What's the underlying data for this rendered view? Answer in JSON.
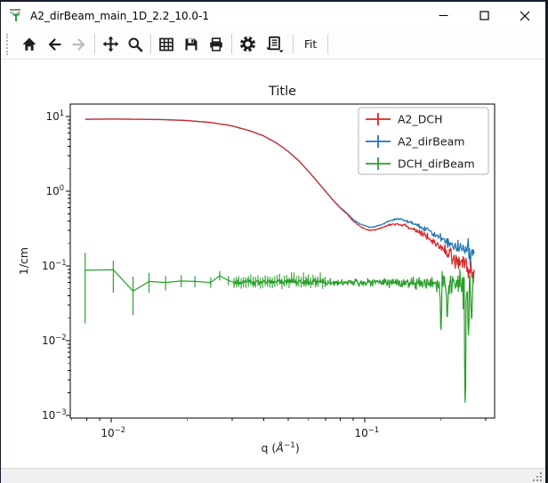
{
  "window": {
    "title": "A2_dirBeam_main_1D_2.2_10.0-1",
    "controls": [
      {
        "name": "minimize"
      },
      {
        "name": "maximize"
      },
      {
        "name": "close"
      }
    ]
  },
  "toolbar": {
    "icons": [
      "home",
      "back",
      "forward",
      "pan",
      "zoom-to-rect",
      "configure-subplots",
      "save",
      "print",
      "settings",
      "plot-options"
    ],
    "fit_label": "Fit"
  },
  "statusbar": {
    "text": ""
  },
  "chart_data": {
    "type": "line",
    "log_x": true,
    "log_y": true,
    "grid": false,
    "title": "Title",
    "ylabel": "1/cm",
    "xlabel_parts": {
      "pre": "q (",
      "unit": "Å",
      "sup": "−1",
      "post": ")"
    },
    "xlim": [
      0.0069,
      0.3253
    ],
    "ylim": [
      0.00092,
      14.7
    ],
    "x_tick_exponents": [
      -2,
      -1
    ],
    "y_tick_exponents": [
      1,
      0,
      -1,
      -2,
      -3
    ],
    "legend_loc": "upper right",
    "series": [
      {
        "name": "A2_DCH",
        "color": "#d62728",
        "z": 1,
        "seed": 7,
        "range": [
          0.0079,
          0.27
        ],
        "n": 600,
        "anchors": [
          [
            0.0079,
            9.2
          ],
          [
            0.01,
            9.25
          ],
          [
            0.013,
            9.2
          ],
          [
            0.016,
            9.1
          ],
          [
            0.02,
            8.85
          ],
          [
            0.025,
            8.3
          ],
          [
            0.03,
            7.5
          ],
          [
            0.035,
            6.5
          ],
          [
            0.04,
            5.5
          ],
          [
            0.045,
            4.4
          ],
          [
            0.05,
            3.4
          ],
          [
            0.055,
            2.55
          ],
          [
            0.06,
            1.85
          ],
          [
            0.065,
            1.35
          ],
          [
            0.07,
            1.0
          ],
          [
            0.075,
            0.76
          ],
          [
            0.08,
            0.6
          ],
          [
            0.085,
            0.5
          ],
          [
            0.09,
            0.4
          ],
          [
            0.095,
            0.345
          ],
          [
            0.1,
            0.315
          ],
          [
            0.105,
            0.3
          ],
          [
            0.11,
            0.305
          ],
          [
            0.115,
            0.32
          ],
          [
            0.12,
            0.34
          ],
          [
            0.125,
            0.355
          ],
          [
            0.13,
            0.365
          ],
          [
            0.135,
            0.365
          ],
          [
            0.14,
            0.357
          ],
          [
            0.15,
            0.33
          ],
          [
            0.16,
            0.295
          ],
          [
            0.17,
            0.262
          ],
          [
            0.18,
            0.23
          ],
          [
            0.19,
            0.2
          ],
          [
            0.2,
            0.175
          ],
          [
            0.21,
            0.155
          ],
          [
            0.22,
            0.138
          ],
          [
            0.23,
            0.122
          ],
          [
            0.24,
            0.108
          ],
          [
            0.25,
            0.098
          ],
          [
            0.26,
            0.09
          ],
          [
            0.27,
            0.086
          ]
        ],
        "noise": [
          [
            0.008,
            0.002
          ],
          [
            0.08,
            0.004
          ],
          [
            0.12,
            0.012
          ],
          [
            0.16,
            0.035
          ],
          [
            0.2,
            0.08
          ],
          [
            0.24,
            0.16
          ],
          [
            0.27,
            0.22
          ]
        ]
      },
      {
        "name": "A2_dirBeam",
        "color": "#1f77b4",
        "z": 0,
        "seed": 13,
        "range": [
          0.0079,
          0.27
        ],
        "n": 600,
        "anchors": [
          [
            0.0079,
            9.2
          ],
          [
            0.01,
            9.25
          ],
          [
            0.013,
            9.2
          ],
          [
            0.016,
            9.1
          ],
          [
            0.02,
            8.85
          ],
          [
            0.025,
            8.3
          ],
          [
            0.03,
            7.5
          ],
          [
            0.035,
            6.5
          ],
          [
            0.04,
            5.5
          ],
          [
            0.045,
            4.4
          ],
          [
            0.05,
            3.4
          ],
          [
            0.055,
            2.55
          ],
          [
            0.06,
            1.85
          ],
          [
            0.065,
            1.35
          ],
          [
            0.07,
            1.0
          ],
          [
            0.075,
            0.76
          ],
          [
            0.08,
            0.61
          ],
          [
            0.085,
            0.51
          ],
          [
            0.09,
            0.42
          ],
          [
            0.095,
            0.37
          ],
          [
            0.1,
            0.345
          ],
          [
            0.105,
            0.33
          ],
          [
            0.11,
            0.335
          ],
          [
            0.115,
            0.35
          ],
          [
            0.12,
            0.375
          ],
          [
            0.125,
            0.4
          ],
          [
            0.13,
            0.415
          ],
          [
            0.135,
            0.42
          ],
          [
            0.14,
            0.415
          ],
          [
            0.15,
            0.39
          ],
          [
            0.16,
            0.355
          ],
          [
            0.17,
            0.32
          ],
          [
            0.18,
            0.29
          ],
          [
            0.19,
            0.262
          ],
          [
            0.2,
            0.238
          ],
          [
            0.21,
            0.218
          ],
          [
            0.22,
            0.202
          ],
          [
            0.23,
            0.188
          ],
          [
            0.24,
            0.175
          ],
          [
            0.25,
            0.165
          ],
          [
            0.26,
            0.155
          ],
          [
            0.27,
            0.15
          ]
        ],
        "noise": [
          [
            0.008,
            0.002
          ],
          [
            0.08,
            0.004
          ],
          [
            0.12,
            0.01
          ],
          [
            0.16,
            0.028
          ],
          [
            0.2,
            0.06
          ],
          [
            0.24,
            0.11
          ],
          [
            0.27,
            0.16
          ]
        ]
      },
      {
        "name": "DCH_dirBeam",
        "color": "#2ca02c",
        "z": 2,
        "seed": 21,
        "range": [
          0.0305,
          0.268
        ],
        "n": 500,
        "sparse": [
          [
            0.0079,
            0.088,
            0.017,
            0.15
          ],
          [
            0.0102,
            0.089,
            0.044,
            0.118
          ],
          [
            0.0122,
            0.046,
            0.022,
            0.072
          ],
          [
            0.0141,
            0.062,
            0.044,
            0.081
          ],
          [
            0.0164,
            0.06,
            0.047,
            0.073
          ],
          [
            0.0189,
            0.063,
            0.052,
            0.075
          ],
          [
            0.0214,
            0.062,
            0.052,
            0.073
          ],
          [
            0.0247,
            0.06,
            0.051,
            0.07
          ],
          [
            0.0268,
            0.074,
            0.064,
            0.085
          ],
          [
            0.029,
            0.064,
            0.055,
            0.073
          ],
          [
            0.0305,
            0.06,
            0.051,
            0.069
          ]
        ],
        "anchors": [
          [
            0.0305,
            0.06
          ],
          [
            0.05,
            0.062
          ],
          [
            0.08,
            0.06
          ],
          [
            0.12,
            0.061
          ],
          [
            0.16,
            0.058
          ],
          [
            0.2,
            0.057
          ],
          [
            0.24,
            0.054
          ],
          [
            0.268,
            0.05
          ]
        ],
        "noise": [
          [
            0.0305,
            0.04
          ],
          [
            0.06,
            0.05
          ],
          [
            0.1,
            0.06
          ],
          [
            0.14,
            0.08
          ],
          [
            0.18,
            0.12
          ],
          [
            0.22,
            0.22
          ],
          [
            0.245,
            0.3
          ],
          [
            0.268,
            0.4
          ]
        ],
        "spikes": [
          [
            0.2,
            0.014
          ],
          [
            0.2115,
            0.021
          ],
          [
            0.249,
            0.0015
          ],
          [
            0.2565,
            0.012
          ],
          [
            0.264,
            0.02
          ]
        ],
        "tick_bars_until": 0.07
      }
    ]
  }
}
